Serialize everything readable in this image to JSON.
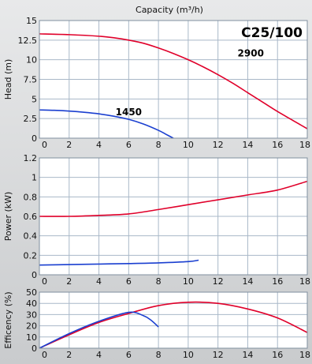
{
  "chart_data": {
    "type": "line",
    "title": "C25/100",
    "xlabel": "Capacity (m³/h)",
    "xlim": [
      0,
      18
    ],
    "x_ticks": [
      "0",
      "2",
      "4",
      "6",
      "8",
      "10",
      "12",
      "14",
      "16",
      "18"
    ],
    "grid": true,
    "colors": {
      "red": "#e0002a",
      "blue": "#1a3fd0",
      "grid": "#a9b8c8",
      "plot_bg": "#ffffff"
    },
    "panels": [
      {
        "id": "head",
        "ylabel": "Head (m)",
        "ylim": [
          0,
          15
        ],
        "y_ticks": [
          "0",
          "2.5",
          "5",
          "7.5",
          "10",
          "12.5",
          "15"
        ],
        "series": [
          {
            "name": "2900",
            "color": "#e0002a",
            "x": [
              0,
              2,
              4,
              5,
              6,
              7,
              8,
              9,
              10,
              11,
              12,
              13,
              14,
              15,
              16,
              17,
              18
            ],
            "y": [
              13.3,
              13.2,
              13.0,
              12.8,
              12.5,
              12.1,
              11.5,
              10.8,
              10.0,
              9.1,
              8.1,
              7.0,
              5.8,
              4.6,
              3.4,
              2.3,
              1.2
            ]
          },
          {
            "name": "1450",
            "color": "#1a3fd0",
            "x": [
              0,
              1,
              2,
              3,
              4,
              5,
              6,
              7,
              8,
              8.5,
              9
            ],
            "y": [
              3.6,
              3.55,
              3.45,
              3.3,
              3.1,
              2.8,
              2.4,
              1.8,
              1.0,
              0.5,
              0.0
            ]
          }
        ]
      },
      {
        "id": "power",
        "ylabel": "Power (kW)",
        "ylim": [
          0,
          1.2
        ],
        "y_ticks": [
          "0",
          "0.2",
          "0.4",
          "0.6",
          "0.8",
          "1",
          "1.2"
        ],
        "series": [
          {
            "name": "2900",
            "color": "#e0002a",
            "x": [
              0,
              2,
              4,
              6,
              8,
              10,
              12,
              14,
              16,
              18
            ],
            "y": [
              0.6,
              0.6,
              0.61,
              0.625,
              0.67,
              0.72,
              0.77,
              0.82,
              0.87,
              0.96
            ]
          },
          {
            "name": "1450",
            "color": "#1a3fd0",
            "x": [
              0,
              2,
              4,
              6,
              8,
              10,
              10.7
            ],
            "y": [
              0.1,
              0.105,
              0.11,
              0.115,
              0.122,
              0.135,
              0.15
            ]
          }
        ]
      },
      {
        "id": "efficiency",
        "ylabel": "Efficency (%)",
        "ylim": [
          0,
          50
        ],
        "y_ticks": [
          "0",
          "10",
          "20",
          "30",
          "40",
          "50"
        ],
        "series": [
          {
            "name": "2900",
            "color": "#e0002a",
            "x": [
              0,
              2,
              4,
              6,
              8,
              10,
              12,
              14,
              16,
              18
            ],
            "y": [
              0,
              12,
              23,
              31,
              38,
              41,
              40,
              35,
              27,
              14
            ]
          },
          {
            "name": "1450",
            "color": "#1a3fd0",
            "x": [
              0,
              2,
              4,
              6,
              7,
              7.5,
              8
            ],
            "y": [
              0,
              13,
              24,
              32,
              29,
              25,
              19
            ]
          }
        ]
      }
    ],
    "annotations": [
      {
        "panel": "head",
        "text": "2900",
        "x": 14.2,
        "y": 10.4
      },
      {
        "panel": "head",
        "text": "1450",
        "x": 6.0,
        "y": 2.9
      }
    ]
  }
}
